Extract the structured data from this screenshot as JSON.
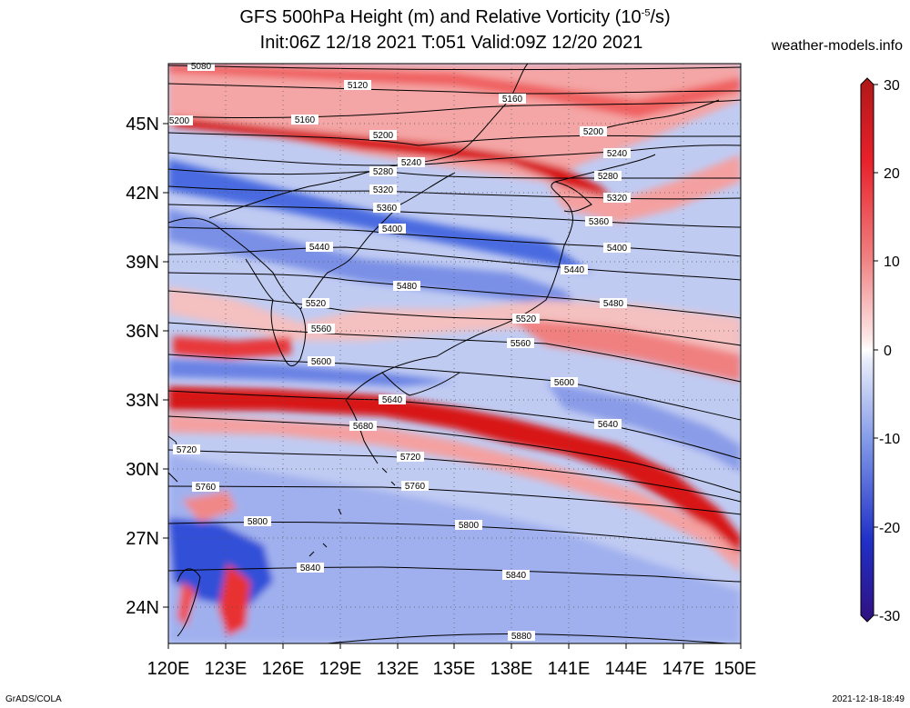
{
  "title": {
    "line1": "GFS 500hPa Height (m) and Relative Vorticity (10",
    "line1_exp": "-5",
    "line1_end": "/s)",
    "line2": "Init:06Z 12/18 2021 T:051 Valid:09Z 12/20 2021"
  },
  "site": "weather-models.info",
  "footer": {
    "left": "GrADS/COLA",
    "right": "2021-12-18-18:49"
  },
  "lat_labels": [
    "45N",
    "42N",
    "39N",
    "36N",
    "33N",
    "30N",
    "27N",
    "24N"
  ],
  "lon_labels": [
    "120E",
    "123E",
    "126E",
    "129E",
    "132E",
    "135E",
    "138E",
    "141E",
    "144E",
    "147E",
    "150E"
  ],
  "colorbar": {
    "labels": [
      "30",
      "20",
      "10",
      "0",
      "-10",
      "-20",
      "-30"
    ]
  },
  "contour_labels": [
    "5080",
    "5120",
    "5160",
    "5200",
    "5240",
    "5280",
    "5320",
    "5360",
    "5400",
    "5440",
    "5480",
    "5520",
    "5560",
    "5600",
    "5640",
    "5680",
    "5720",
    "5760",
    "5800",
    "5840",
    "5880"
  ],
  "colors": {
    "red": "#e8202a",
    "pink": "#f4a0a0",
    "blue": "#3a5cd8",
    "lightblue": "#b8c4f0",
    "white": "#ffffff",
    "darkred": "#b01818",
    "darkblue": "#1818a8"
  }
}
